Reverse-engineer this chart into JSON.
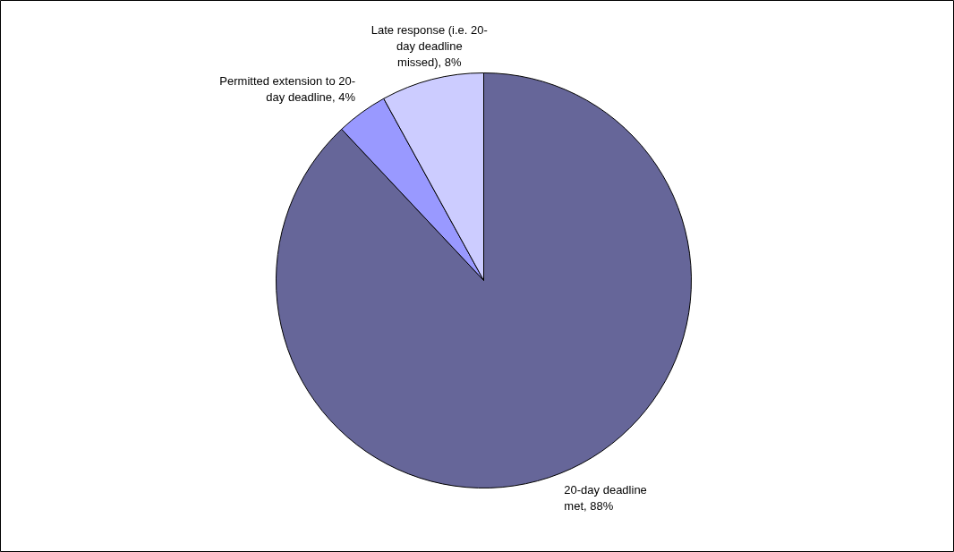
{
  "chart_data": {
    "type": "pie",
    "categories": [
      "20-day deadline met",
      "Permitted extension to 20-day deadline",
      "Late response (i.e. 20-day deadline missed)"
    ],
    "values": [
      88,
      4,
      8
    ],
    "colors": [
      "#666699",
      "#9999ff",
      "#ccccff"
    ],
    "value_labels": [
      "88%",
      "4%",
      "8%"
    ]
  }
}
